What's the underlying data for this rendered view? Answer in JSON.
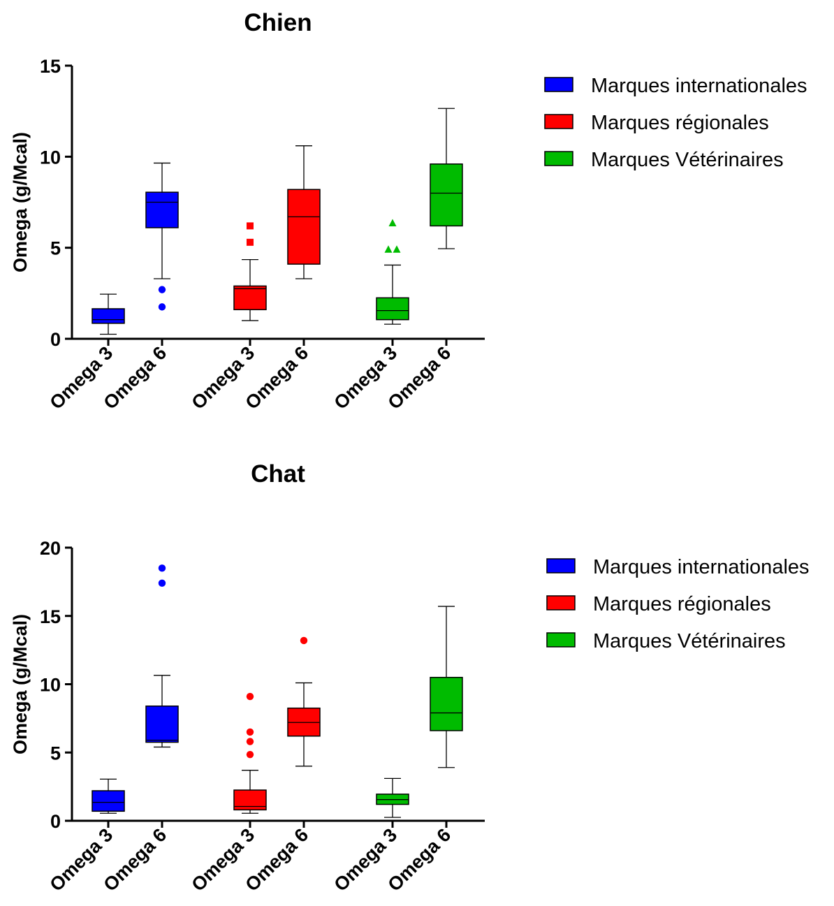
{
  "chart_data": [
    {
      "type": "box",
      "title": "Chien",
      "ylabel": "Omega (g/Mcal)",
      "ylim": [
        0,
        15
      ],
      "yticks": [
        0,
        5,
        10,
        15
      ],
      "categories": [
        "Omega 3",
        "Omega 6",
        "Omega 3",
        "Omega 6",
        "Omega 3",
        "Omega 6"
      ],
      "legend": [
        "Marques internationales",
        "Marques régionales",
        "Marques Vétérinaires"
      ],
      "legend_position": "right",
      "series": [
        {
          "name": "Marques internationales",
          "color": "#0000ff",
          "marker": "circle",
          "boxes": [
            {
              "category": "Omega 3",
              "min": 0.25,
              "q1": 0.85,
              "median": 1.05,
              "q3": 1.65,
              "max": 2.45,
              "outliers": []
            },
            {
              "category": "Omega 6",
              "min": 3.3,
              "q1": 6.1,
              "median": 7.5,
              "q3": 8.05,
              "max": 9.65,
              "outliers": [
                2.7,
                1.75
              ]
            }
          ]
        },
        {
          "name": "Marques régionales",
          "color": "#ff0000",
          "marker": "square",
          "boxes": [
            {
              "category": "Omega 3",
              "min": 1.0,
              "q1": 1.6,
              "median": 2.75,
              "q3": 2.9,
              "max": 4.35,
              "outliers": [
                6.2,
                5.3
              ]
            },
            {
              "category": "Omega 6",
              "min": 3.3,
              "q1": 4.1,
              "median": 6.7,
              "q3": 8.2,
              "max": 10.6,
              "outliers": []
            }
          ]
        },
        {
          "name": "Marques Vétérinaires",
          "color": "#00bb00",
          "marker": "triangle",
          "boxes": [
            {
              "category": "Omega 3",
              "min": 0.8,
              "q1": 1.05,
              "median": 1.55,
              "q3": 2.25,
              "max": 4.05,
              "outliers": [
                6.35,
                4.9,
                4.9
              ]
            },
            {
              "category": "Omega 6",
              "min": 4.95,
              "q1": 6.2,
              "median": 8.0,
              "q3": 9.6,
              "max": 12.65,
              "outliers": []
            }
          ]
        }
      ]
    },
    {
      "type": "box",
      "title": "Chat",
      "ylabel": "Omega (g/Mcal)",
      "ylim": [
        0,
        20
      ],
      "yticks": [
        0,
        5,
        10,
        15,
        20
      ],
      "categories": [
        "Omega 3",
        "Omega 6",
        "Omega 3",
        "Omega 6",
        "Omega 3",
        "Omega 6"
      ],
      "legend": [
        "Marques internationales",
        "Marques régionales",
        "Marques Vétérinaires"
      ],
      "legend_position": "right",
      "series": [
        {
          "name": "Marques internationales",
          "color": "#0000ff",
          "marker": "circle",
          "boxes": [
            {
              "category": "Omega 3",
              "min": 0.55,
              "q1": 0.7,
              "median": 1.35,
              "q3": 2.2,
              "max": 3.05,
              "outliers": []
            },
            {
              "category": "Omega 6",
              "min": 5.4,
              "q1": 5.75,
              "median": 5.9,
              "q3": 8.4,
              "max": 10.65,
              "outliers": [
                18.5,
                17.4
              ]
            }
          ]
        },
        {
          "name": "Marques régionales",
          "color": "#ff0000",
          "marker": "circle",
          "boxes": [
            {
              "category": "Omega 3",
              "min": 0.55,
              "q1": 0.8,
              "median": 1.05,
              "q3": 2.25,
              "max": 3.7,
              "outliers": [
                9.1,
                6.5,
                5.8,
                4.85
              ]
            },
            {
              "category": "Omega 6",
              "min": 4.0,
              "q1": 6.2,
              "median": 7.2,
              "q3": 8.25,
              "max": 10.1,
              "outliers": [
                13.2
              ]
            }
          ]
        },
        {
          "name": "Marques Vétérinaires",
          "color": "#00bb00",
          "marker": "none",
          "boxes": [
            {
              "category": "Omega 3",
              "min": 0.25,
              "q1": 1.2,
              "median": 1.55,
              "q3": 1.95,
              "max": 3.1,
              "outliers": []
            },
            {
              "category": "Omega 6",
              "min": 3.9,
              "q1": 6.6,
              "median": 7.9,
              "q3": 10.5,
              "max": 15.7,
              "outliers": []
            }
          ]
        }
      ]
    }
  ]
}
